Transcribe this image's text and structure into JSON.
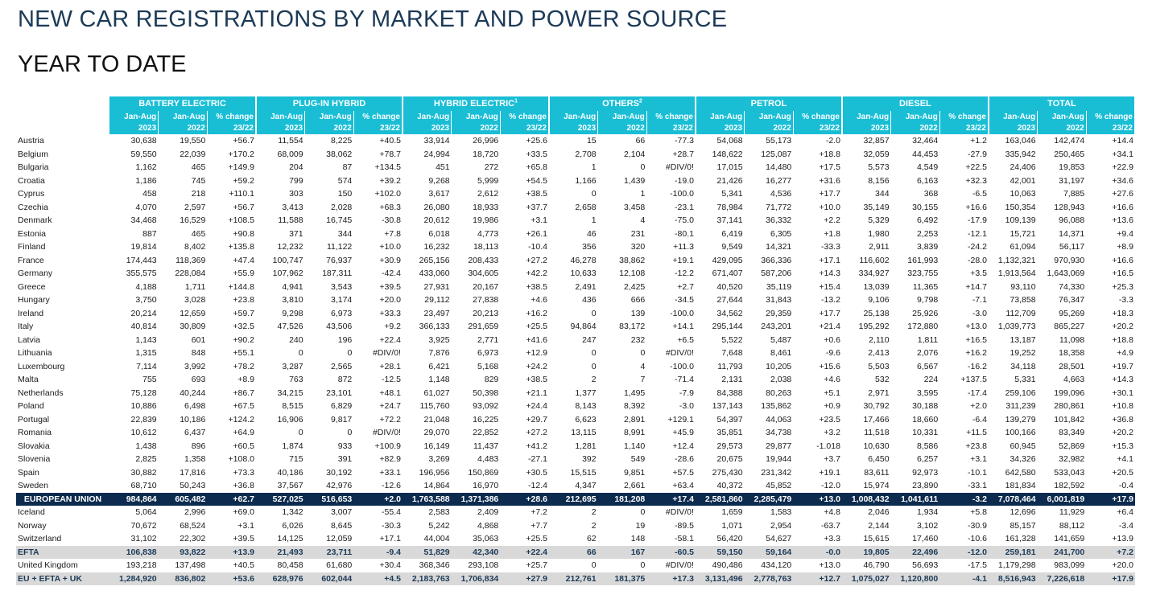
{
  "title": "NEW CAR REGISTRATIONS BY MARKET AND POWER SOURCE",
  "subtitle": "YEAR TO DATE",
  "colors": {
    "header": "#19bed5",
    "eu_row": "#0d2b4e",
    "efta_row": "#d9d9d9",
    "title": "#1c3a57"
  },
  "groups": [
    {
      "label": "BATTERY ELECTRIC",
      "sup": ""
    },
    {
      "label": "PLUG-IN HYBRID",
      "sup": ""
    },
    {
      "label": "HYBRID ELECTRIC",
      "sup": "1"
    },
    {
      "label": "OTHERS",
      "sup": "2"
    },
    {
      "label": "PETROL",
      "sup": ""
    },
    {
      "label": "DIESEL",
      "sup": ""
    },
    {
      "label": "TOTAL",
      "sup": ""
    }
  ],
  "subheader_top": [
    "Jan-Aug",
    "Jan-Aug",
    "% change"
  ],
  "subheader_bottom": [
    "2023",
    "2022",
    "23/22"
  ],
  "rows": [
    {
      "name": "Austria",
      "type": "normal",
      "cells": [
        "30,638",
        "19,550",
        "+56.7",
        "11,554",
        "8,225",
        "+40.5",
        "33,914",
        "26,996",
        "+25.6",
        "15",
        "66",
        "-77.3",
        "54,068",
        "55,173",
        "-2.0",
        "32,857",
        "32,464",
        "+1.2",
        "163,046",
        "142,474",
        "+14.4"
      ]
    },
    {
      "name": "Belgium",
      "type": "normal",
      "cells": [
        "59,550",
        "22,039",
        "+170.2",
        "68,009",
        "38,062",
        "+78.7",
        "24,994",
        "18,720",
        "+33.5",
        "2,708",
        "2,104",
        "+28.7",
        "148,622",
        "125,087",
        "+18.8",
        "32,059",
        "44,453",
        "-27.9",
        "335,942",
        "250,465",
        "+34.1"
      ]
    },
    {
      "name": "Bulgaria",
      "type": "normal",
      "cells": [
        "1,162",
        "465",
        "+149.9",
        "204",
        "87",
        "+134.5",
        "451",
        "272",
        "+65.8",
        "1",
        "0",
        "#DIV/0!",
        "17,015",
        "14,480",
        "+17.5",
        "5,573",
        "4,549",
        "+22.5",
        "24,406",
        "19,853",
        "+22.9"
      ]
    },
    {
      "name": "Croatia",
      "type": "normal",
      "cells": [
        "1,186",
        "745",
        "+59.2",
        "799",
        "574",
        "+39.2",
        "9,268",
        "5,999",
        "+54.5",
        "1,166",
        "1,439",
        "-19.0",
        "21,426",
        "16,277",
        "+31.6",
        "8,156",
        "6,163",
        "+32.3",
        "42,001",
        "31,197",
        "+34.6"
      ]
    },
    {
      "name": "Cyprus",
      "type": "normal",
      "cells": [
        "458",
        "218",
        "+110.1",
        "303",
        "150",
        "+102.0",
        "3,617",
        "2,612",
        "+38.5",
        "0",
        "1",
        "-100.0",
        "5,341",
        "4,536",
        "+17.7",
        "344",
        "368",
        "-6.5",
        "10,063",
        "7,885",
        "+27.6"
      ]
    },
    {
      "name": "Czechia",
      "type": "normal",
      "cells": [
        "4,070",
        "2,597",
        "+56.7",
        "3,413",
        "2,028",
        "+68.3",
        "26,080",
        "18,933",
        "+37.7",
        "2,658",
        "3,458",
        "-23.1",
        "78,984",
        "71,772",
        "+10.0",
        "35,149",
        "30,155",
        "+16.6",
        "150,354",
        "128,943",
        "+16.6"
      ]
    },
    {
      "name": "Denmark",
      "type": "normal",
      "cells": [
        "34,468",
        "16,529",
        "+108.5",
        "11,588",
        "16,745",
        "-30.8",
        "20,612",
        "19,986",
        "+3.1",
        "1",
        "4",
        "-75.0",
        "37,141",
        "36,332",
        "+2.2",
        "5,329",
        "6,492",
        "-17.9",
        "109,139",
        "96,088",
        "+13.6"
      ]
    },
    {
      "name": "Estonia",
      "type": "normal",
      "cells": [
        "887",
        "465",
        "+90.8",
        "371",
        "344",
        "+7.8",
        "6,018",
        "4,773",
        "+26.1",
        "46",
        "231",
        "-80.1",
        "6,419",
        "6,305",
        "+1.8",
        "1,980",
        "2,253",
        "-12.1",
        "15,721",
        "14,371",
        "+9.4"
      ]
    },
    {
      "name": "Finland",
      "type": "normal",
      "cells": [
        "19,814",
        "8,402",
        "+135.8",
        "12,232",
        "11,122",
        "+10.0",
        "16,232",
        "18,113",
        "-10.4",
        "356",
        "320",
        "+11.3",
        "9,549",
        "14,321",
        "-33.3",
        "2,911",
        "3,839",
        "-24.2",
        "61,094",
        "56,117",
        "+8.9"
      ]
    },
    {
      "name": "France",
      "type": "normal",
      "cells": [
        "174,443",
        "118,369",
        "+47.4",
        "100,747",
        "76,937",
        "+30.9",
        "265,156",
        "208,433",
        "+27.2",
        "46,278",
        "38,862",
        "+19.1",
        "429,095",
        "366,336",
        "+17.1",
        "116,602",
        "161,993",
        "-28.0",
        "1,132,321",
        "970,930",
        "+16.6"
      ]
    },
    {
      "name": "Germany",
      "type": "normal",
      "cells": [
        "355,575",
        "228,084",
        "+55.9",
        "107,962",
        "187,311",
        "-42.4",
        "433,060",
        "304,605",
        "+42.2",
        "10,633",
        "12,108",
        "-12.2",
        "671,407",
        "587,206",
        "+14.3",
        "334,927",
        "323,755",
        "+3.5",
        "1,913,564",
        "1,643,069",
        "+16.5"
      ]
    },
    {
      "name": "Greece",
      "type": "normal",
      "cells": [
        "4,188",
        "1,711",
        "+144.8",
        "4,941",
        "3,543",
        "+39.5",
        "27,931",
        "20,167",
        "+38.5",
        "2,491",
        "2,425",
        "+2.7",
        "40,520",
        "35,119",
        "+15.4",
        "13,039",
        "11,365",
        "+14.7",
        "93,110",
        "74,330",
        "+25.3"
      ]
    },
    {
      "name": "Hungary",
      "type": "normal",
      "cells": [
        "3,750",
        "3,028",
        "+23.8",
        "3,810",
        "3,174",
        "+20.0",
        "29,112",
        "27,838",
        "+4.6",
        "436",
        "666",
        "-34.5",
        "27,644",
        "31,843",
        "-13.2",
        "9,106",
        "9,798",
        "-7.1",
        "73,858",
        "76,347",
        "-3.3"
      ]
    },
    {
      "name": "Ireland",
      "type": "normal",
      "cells": [
        "20,214",
        "12,659",
        "+59.7",
        "9,298",
        "6,973",
        "+33.3",
        "23,497",
        "20,213",
        "+16.2",
        "0",
        "139",
        "-100.0",
        "34,562",
        "29,359",
        "+17.7",
        "25,138",
        "25,926",
        "-3.0",
        "112,709",
        "95,269",
        "+18.3"
      ]
    },
    {
      "name": "Italy",
      "type": "normal",
      "cells": [
        "40,814",
        "30,809",
        "+32.5",
        "47,526",
        "43,506",
        "+9.2",
        "366,133",
        "291,659",
        "+25.5",
        "94,864",
        "83,172",
        "+14.1",
        "295,144",
        "243,201",
        "+21.4",
        "195,292",
        "172,880",
        "+13.0",
        "1,039,773",
        "865,227",
        "+20.2"
      ]
    },
    {
      "name": "Latvia",
      "type": "normal",
      "cells": [
        "1,143",
        "601",
        "+90.2",
        "240",
        "196",
        "+22.4",
        "3,925",
        "2,771",
        "+41.6",
        "247",
        "232",
        "+6.5",
        "5,522",
        "5,487",
        "+0.6",
        "2,110",
        "1,811",
        "+16.5",
        "13,187",
        "11,098",
        "+18.8"
      ]
    },
    {
      "name": "Lithuania",
      "type": "normal",
      "cells": [
        "1,315",
        "848",
        "+55.1",
        "0",
        "0",
        "#DIV/0!",
        "7,876",
        "6,973",
        "+12.9",
        "0",
        "0",
        "#DIV/0!",
        "7,648",
        "8,461",
        "-9.6",
        "2,413",
        "2,076",
        "+16.2",
        "19,252",
        "18,358",
        "+4.9"
      ]
    },
    {
      "name": "Luxembourg",
      "type": "normal",
      "cells": [
        "7,114",
        "3,992",
        "+78.2",
        "3,287",
        "2,565",
        "+28.1",
        "6,421",
        "5,168",
        "+24.2",
        "0",
        "4",
        "-100.0",
        "11,793",
        "10,205",
        "+15.6",
        "5,503",
        "6,567",
        "-16.2",
        "34,118",
        "28,501",
        "+19.7"
      ]
    },
    {
      "name": "Malta",
      "type": "normal",
      "cells": [
        "755",
        "693",
        "+8.9",
        "763",
        "872",
        "-12.5",
        "1,148",
        "829",
        "+38.5",
        "2",
        "7",
        "-71.4",
        "2,131",
        "2,038",
        "+4.6",
        "532",
        "224",
        "+137.5",
        "5,331",
        "4,663",
        "+14.3"
      ]
    },
    {
      "name": "Netherlands",
      "type": "normal",
      "cells": [
        "75,128",
        "40,244",
        "+86.7",
        "34,215",
        "23,101",
        "+48.1",
        "61,027",
        "50,398",
        "+21.1",
        "1,377",
        "1,495",
        "-7.9",
        "84,388",
        "80,263",
        "+5.1",
        "2,971",
        "3,595",
        "-17.4",
        "259,106",
        "199,096",
        "+30.1"
      ]
    },
    {
      "name": "Poland",
      "type": "normal",
      "cells": [
        "10,886",
        "6,498",
        "+67.5",
        "8,515",
        "6,829",
        "+24.7",
        "115,760",
        "93,092",
        "+24.4",
        "8,143",
        "8,392",
        "-3.0",
        "137,143",
        "135,862",
        "+0.9",
        "30,792",
        "30,188",
        "+2.0",
        "311,239",
        "280,861",
        "+10.8"
      ]
    },
    {
      "name": "Portugal",
      "type": "normal",
      "cells": [
        "22,839",
        "10,186",
        "+124.2",
        "16,906",
        "9,817",
        "+72.2",
        "21,048",
        "16,225",
        "+29.7",
        "6,623",
        "2,891",
        "+129.1",
        "54,397",
        "44,063",
        "+23.5",
        "17,466",
        "18,660",
        "-6.4",
        "139,279",
        "101,842",
        "+36.8"
      ]
    },
    {
      "name": "Romania",
      "type": "normal",
      "cells": [
        "10,612",
        "6,437",
        "+64.9",
        "0",
        "0",
        "#DIV/0!",
        "29,070",
        "22,852",
        "+27.2",
        "13,115",
        "8,991",
        "+45.9",
        "35,851",
        "34,738",
        "+3.2",
        "11,518",
        "10,331",
        "+11.5",
        "100,166",
        "83,349",
        "+20.2"
      ]
    },
    {
      "name": "Slovakia",
      "type": "normal",
      "cells": [
        "1,438",
        "896",
        "+60.5",
        "1,874",
        "933",
        "+100.9",
        "16,149",
        "11,437",
        "+41.2",
        "1,281",
        "1,140",
        "+12.4",
        "29,573",
        "29,877",
        "-1.018",
        "10,630",
        "8,586",
        "+23.8",
        "60,945",
        "52,869",
        "+15.3"
      ]
    },
    {
      "name": "Slovenia",
      "type": "normal",
      "cells": [
        "2,825",
        "1,358",
        "+108.0",
        "715",
        "391",
        "+82.9",
        "3,269",
        "4,483",
        "-27.1",
        "392",
        "549",
        "-28.6",
        "20,675",
        "19,944",
        "+3.7",
        "6,450",
        "6,257",
        "+3.1",
        "34,326",
        "32,982",
        "+4.1"
      ]
    },
    {
      "name": "Spain",
      "type": "normal",
      "cells": [
        "30,882",
        "17,816",
        "+73.3",
        "40,186",
        "30,192",
        "+33.1",
        "196,956",
        "150,869",
        "+30.5",
        "15,515",
        "9,851",
        "+57.5",
        "275,430",
        "231,342",
        "+19.1",
        "83,611",
        "92,973",
        "-10.1",
        "642,580",
        "533,043",
        "+20.5"
      ]
    },
    {
      "name": "Sweden",
      "type": "normal",
      "cells": [
        "68,710",
        "50,243",
        "+36.8",
        "37,567",
        "42,976",
        "-12.6",
        "14,864",
        "16,970",
        "-12.4",
        "4,347",
        "2,661",
        "+63.4",
        "40,372",
        "45,852",
        "-12.0",
        "15,974",
        "23,890",
        "-33.1",
        "181,834",
        "182,592",
        "-0.4"
      ]
    },
    {
      "name": "EUROPEAN UNION",
      "type": "hl",
      "cells": [
        "984,864",
        "605,482",
        "+62.7",
        "527,025",
        "516,653",
        "+2.0",
        "1,763,588",
        "1,371,386",
        "+28.6",
        "212,695",
        "181,208",
        "+17.4",
        "2,581,860",
        "2,285,479",
        "+13.0",
        "1,008,432",
        "1,041,611",
        "-3.2",
        "7,078,464",
        "6,001,819",
        "+17.9"
      ]
    },
    {
      "name": "Iceland",
      "type": "normal",
      "cells": [
        "5,064",
        "2,996",
        "+69.0",
        "1,342",
        "3,007",
        "-55.4",
        "2,583",
        "2,409",
        "+7.2",
        "2",
        "0",
        "#DIV/0!",
        "1,659",
        "1,583",
        "+4.8",
        "2,046",
        "1,934",
        "+5.8",
        "12,696",
        "11,929",
        "+6.4"
      ]
    },
    {
      "name": "Norway",
      "type": "normal",
      "cells": [
        "70,672",
        "68,524",
        "+3.1",
        "6,026",
        "8,645",
        "-30.3",
        "5,242",
        "4,868",
        "+7.7",
        "2",
        "19",
        "-89.5",
        "1,071",
        "2,954",
        "-63.7",
        "2,144",
        "3,102",
        "-30.9",
        "85,157",
        "88,112",
        "-3.4"
      ]
    },
    {
      "name": "Switzerland",
      "type": "normal",
      "cells": [
        "31,102",
        "22,302",
        "+39.5",
        "14,125",
        "12,059",
        "+17.1",
        "44,004",
        "35,063",
        "+25.5",
        "62",
        "148",
        "-58.1",
        "56,420",
        "54,627",
        "+3.3",
        "15,615",
        "17,460",
        "-10.6",
        "161,328",
        "141,659",
        "+13.9"
      ]
    },
    {
      "name": "EFTA",
      "type": "gr",
      "cells": [
        "106,838",
        "93,822",
        "+13.9",
        "21,493",
        "23,711",
        "-9.4",
        "51,829",
        "42,340",
        "+22.4",
        "66",
        "167",
        "-60.5",
        "59,150",
        "59,164",
        "-0.0",
        "19,805",
        "22,496",
        "-12.0",
        "259,181",
        "241,700",
        "+7.2"
      ]
    },
    {
      "name": "United Kingdom",
      "type": "normal",
      "cells": [
        "193,218",
        "137,498",
        "+40.5",
        "80,458",
        "61,680",
        "+30.4",
        "368,346",
        "293,108",
        "+25.7",
        "0",
        "0",
        "#DIV/0!",
        "490,486",
        "434,120",
        "+13.0",
        "46,790",
        "56,693",
        "-17.5",
        "1,179,298",
        "983,099",
        "+20.0"
      ]
    },
    {
      "name": "EU + EFTA + UK",
      "type": "gr",
      "cells": [
        "1,284,920",
        "836,802",
        "+53.6",
        "628,976",
        "602,044",
        "+4.5",
        "2,183,763",
        "1,706,834",
        "+27.9",
        "212,761",
        "181,375",
        "+17.3",
        "3,131,496",
        "2,778,763",
        "+12.7",
        "1,075,027",
        "1,120,800",
        "-4.1",
        "8,516,943",
        "7,226,618",
        "+17.9"
      ]
    }
  ]
}
